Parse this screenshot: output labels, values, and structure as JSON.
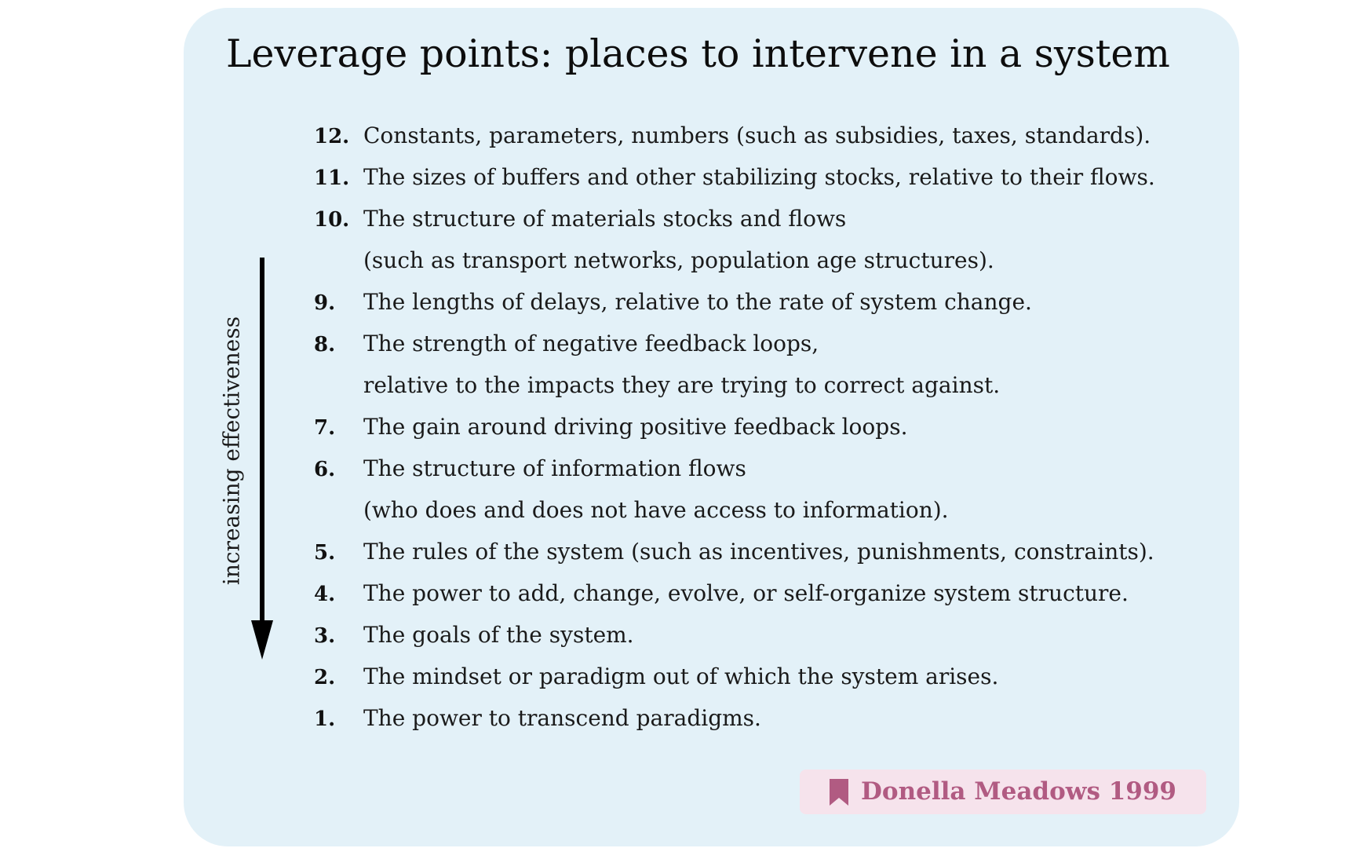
{
  "title": "Leverage points: places to intervene in a system",
  "axis_label": "increasing effectiveness",
  "items": [
    {
      "number": "12.",
      "lines": [
        "Constants, parameters, numbers (such as subsidies, taxes, standards)."
      ]
    },
    {
      "number": "11.",
      "lines": [
        "The sizes of buffers and other stabilizing stocks, relative to their flows."
      ]
    },
    {
      "number": "10.",
      "lines": [
        "The structure of materials stocks and flows",
        "(such as transport networks, population age structures)."
      ]
    },
    {
      "number": "9.",
      "lines": [
        "The lengths of delays, relative to the rate of system change."
      ]
    },
    {
      "number": "8.",
      "lines": [
        "The strength of negative feedback loops,",
        "relative to the impacts they are trying to correct against."
      ]
    },
    {
      "number": "7.",
      "lines": [
        "The gain around driving positive feedback loops."
      ]
    },
    {
      "number": "6.",
      "lines": [
        "The structure of information flows",
        "(who does and does not have access to information)."
      ]
    },
    {
      "number": "5.",
      "lines": [
        "The rules of the system (such as incentives, punishments, constraints)."
      ]
    },
    {
      "number": "4.",
      "lines": [
        "The power to add, change, evolve, or self-organize system structure."
      ]
    },
    {
      "number": "3.",
      "lines": [
        "The goals of the system."
      ]
    },
    {
      "number": "2.",
      "lines": [
        "The mindset or paradigm out of which the system arises."
      ]
    },
    {
      "number": "1.",
      "lines": [
        "The power to transcend paradigms."
      ]
    }
  ],
  "citation": {
    "icon": "bookmark-icon",
    "text": "Donella Meadows 1999"
  },
  "colors": {
    "card_background": "#e3f1f8",
    "citation_background": "#f6e3ec",
    "citation_text": "#b15b82"
  }
}
